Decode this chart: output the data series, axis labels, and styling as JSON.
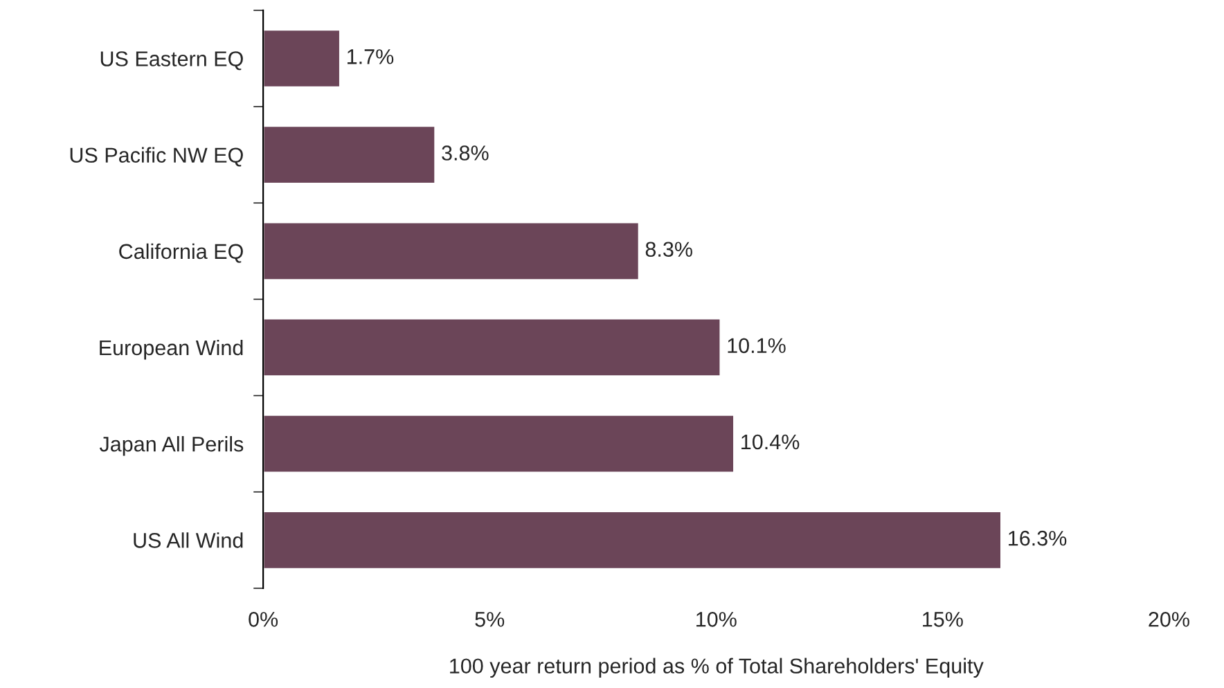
{
  "chart_data": {
    "type": "bar",
    "orientation": "horizontal",
    "xlabel": "100 year return period as % of Total Shareholders' Equity",
    "categories": [
      "US Eastern EQ",
      "US Pacific NW EQ",
      "California EQ",
      "European Wind",
      "Japan All Perils",
      "US All Wind"
    ],
    "values": [
      1.7,
      3.8,
      8.3,
      10.1,
      10.4,
      16.3
    ],
    "value_labels": [
      "1.7%",
      "3.8%",
      "8.3%",
      "10.1%",
      "10.4%",
      "16.3%"
    ],
    "color": "#6b4558",
    "xlim": [
      0,
      20
    ],
    "xticks": [
      {
        "value": 0,
        "label": "0%"
      },
      {
        "value": 5,
        "label": "5%"
      },
      {
        "value": 10,
        "label": "10%"
      },
      {
        "value": 15,
        "label": "15%"
      },
      {
        "value": 20,
        "label": "20%"
      }
    ],
    "grid": false,
    "legend": false
  }
}
